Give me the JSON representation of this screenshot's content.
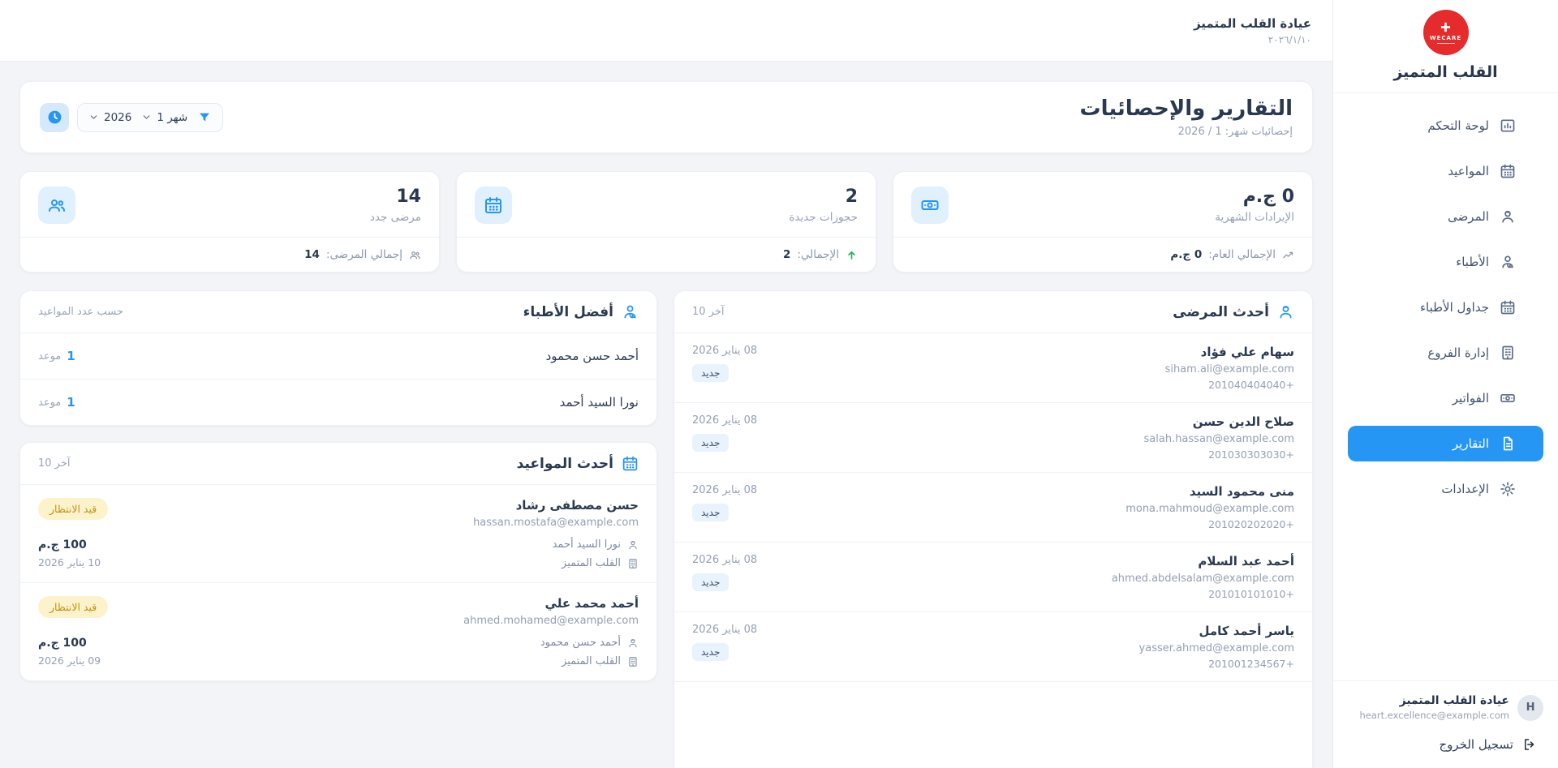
{
  "colors": {
    "accent": "#2596f3",
    "logo_red": "#e52b2b",
    "badge_new_bg": "#e9f3fd",
    "badge_pending_bg": "#fcf2cc",
    "badge_pending_text": "#bf940f",
    "positive_green": "#1fb155"
  },
  "sidebar": {
    "logo_text": "WECARE",
    "brand_title": "القلب المتميز",
    "items": [
      {
        "label": "لوحة التحكم",
        "icon": "bar-chart",
        "active": false
      },
      {
        "label": "المواعيد",
        "icon": "calendar",
        "active": false
      },
      {
        "label": "المرضى",
        "icon": "patient",
        "active": false
      },
      {
        "label": "الأطباء",
        "icon": "doctor",
        "active": false
      },
      {
        "label": "جداول الأطباء",
        "icon": "calendar",
        "active": false
      },
      {
        "label": "إدارة الفروع",
        "icon": "building",
        "active": false
      },
      {
        "label": "الفواتير",
        "icon": "money",
        "active": false
      },
      {
        "label": "التقارير",
        "icon": "report",
        "active": true
      },
      {
        "label": "الإعدادات",
        "icon": "gear",
        "active": false
      }
    ],
    "user": {
      "name": "عيادة القلب المتميز",
      "email": "heart.excellence@example.com",
      "initial": "H"
    },
    "logout_label": "تسجيل الخروج"
  },
  "header": {
    "clinic_name": "عيادة القلب المتميز",
    "date": "٢٠٢٦/١/١٠"
  },
  "page": {
    "title": "التقارير والإحصائيات",
    "subtitle": "إحصائيات شهر: 1 / 2026"
  },
  "filters": {
    "month": "شهر 1",
    "year": "2026"
  },
  "stats": [
    {
      "icon": "money",
      "value": "0 ج.م",
      "label": "الإيرادات الشهرية",
      "footer_icon": "trend",
      "footer_icon_class": "",
      "footer_label": "الإجمالي العام:",
      "footer_value": "0 ج.م"
    },
    {
      "icon": "calendar",
      "value": "2",
      "label": "حجوزات جديدة",
      "footer_icon": "arrow-up",
      "footer_icon_class": "green",
      "footer_label": "الإجمالي:",
      "footer_value": "2"
    },
    {
      "icon": "people",
      "value": "14",
      "label": "مرضى جدد",
      "footer_icon": "people",
      "footer_icon_class": "",
      "footer_label": "إجمالي المرضى:",
      "footer_value": "14"
    }
  ],
  "patients_panel": {
    "title": "أحدث المرضى",
    "icon": "patient",
    "meta": "آخر 10",
    "rows": [
      {
        "name": "سهام علي فؤاد",
        "email": "siham.ali@example.com",
        "phone": "+201040404040",
        "date": "08 يناير 2026",
        "badge": "جديد"
      },
      {
        "name": "صلاح الدين حسن",
        "email": "salah.hassan@example.com",
        "phone": "+201030303030",
        "date": "08 يناير 2026",
        "badge": "جديد"
      },
      {
        "name": "منى محمود السيد",
        "email": "mona.mahmoud@example.com",
        "phone": "+201020202020",
        "date": "08 يناير 2026",
        "badge": "جديد"
      },
      {
        "name": "أحمد عبد السلام",
        "email": "ahmed.abdelsalam@example.com",
        "phone": "+201010101010",
        "date": "08 يناير 2026",
        "badge": "جديد"
      },
      {
        "name": "ياسر أحمد كامل",
        "email": "yasser.ahmed@example.com",
        "phone": "+201001234567",
        "date": "08 يناير 2026",
        "badge": "جديد"
      }
    ]
  },
  "doctors_panel": {
    "title": "أفضل الأطباء",
    "icon": "doctor",
    "meta": "حسب عدد المواعيد",
    "rows": [
      {
        "name": "أحمد حسن محمود",
        "count": "1",
        "unit": "موعد"
      },
      {
        "name": "نورا السيد أحمد",
        "count": "1",
        "unit": "موعد"
      }
    ]
  },
  "appointments_panel": {
    "title": "أحدث المواعيد",
    "icon": "calendar",
    "meta": "آخر 10",
    "rows": [
      {
        "patient": "حسن مصطفى رشاد",
        "email": "hassan.mostafa@example.com",
        "status": "قيد الانتظار",
        "doctor": "نورا السيد أحمد",
        "clinic": "القلب المتميز",
        "price": "100 ج.م",
        "date": "10 يناير 2026"
      },
      {
        "patient": "أحمد محمد علي",
        "email": "ahmed.mohamed@example.com",
        "status": "قيد الانتظار",
        "doctor": "أحمد حسن محمود",
        "clinic": "القلب المتميز",
        "price": "100 ج.م",
        "date": "09 يناير 2026"
      }
    ]
  }
}
